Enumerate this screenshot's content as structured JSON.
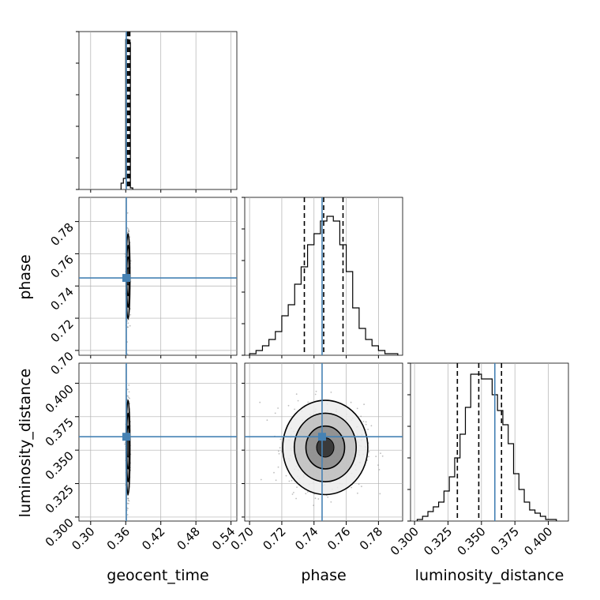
{
  "chart_data": {
    "type": "corner",
    "parameters": [
      "geocent_time",
      "phase",
      "luminosity_distance"
    ],
    "axis_labels": {
      "geocent_time": "geocent_time",
      "phase": "phase",
      "luminosity_distance": "luminosity_distance"
    },
    "ranges": {
      "geocent_time": [
        0.28,
        0.55
      ],
      "phase": [
        0.697,
        0.795
      ],
      "luminosity_distance": [
        0.297,
        0.415
      ]
    },
    "tick_labels": {
      "geocent_time": [
        "0.30",
        "0.36",
        "0.42",
        "0.48",
        "0.54"
      ],
      "phase": [
        "0.70",
        "0.72",
        "0.74",
        "0.76",
        "0.78"
      ],
      "luminosity_distance": [
        "0.300",
        "0.325",
        "0.350",
        "0.375",
        "0.400"
      ]
    },
    "ticks": {
      "geocent_time": [
        0.3,
        0.36,
        0.42,
        0.48,
        0.54
      ],
      "phase": [
        0.7,
        0.72,
        0.74,
        0.76,
        0.78
      ],
      "luminosity_distance": [
        0.3,
        0.325,
        0.35,
        0.375,
        0.4
      ]
    },
    "truths": {
      "geocent_time": 0.361,
      "phase": 0.745,
      "luminosity_distance": 0.36
    },
    "quantiles": {
      "geocent_time": [
        0.363,
        0.365,
        0.367
      ],
      "phase": [
        0.734,
        0.746,
        0.758
      ],
      "luminosity_distance": [
        0.332,
        0.348,
        0.365
      ]
    },
    "histograms": {
      "geocent_time": {
        "bin_edges": [
          0.352,
          0.356,
          0.36,
          0.364,
          0.368,
          0.372
        ],
        "counts": [
          0.04,
          0.07,
          0.95,
          0.93,
          0.01
        ]
      },
      "phase": {
        "bin_edges": [
          0.7,
          0.704,
          0.708,
          0.712,
          0.716,
          0.72,
          0.724,
          0.728,
          0.732,
          0.736,
          0.74,
          0.744,
          0.748,
          0.752,
          0.756,
          0.76,
          0.764,
          0.768,
          0.772,
          0.776,
          0.78,
          0.784,
          0.788,
          0.792
        ],
        "counts": [
          0.01,
          0.03,
          0.06,
          0.1,
          0.15,
          0.25,
          0.32,
          0.45,
          0.56,
          0.7,
          0.77,
          0.85,
          0.88,
          0.85,
          0.7,
          0.53,
          0.3,
          0.17,
          0.1,
          0.06,
          0.03,
          0.01,
          0.01
        ]
      },
      "luminosity_distance": {
        "bin_edges": [
          0.302,
          0.306,
          0.31,
          0.314,
          0.318,
          0.322,
          0.326,
          0.33,
          0.334,
          0.338,
          0.342,
          0.346,
          0.35,
          0.354,
          0.358,
          0.362,
          0.366,
          0.37,
          0.374,
          0.378,
          0.382,
          0.386,
          0.39,
          0.394,
          0.398,
          0.402,
          0.406
        ],
        "counts": [
          0.01,
          0.03,
          0.06,
          0.09,
          0.12,
          0.19,
          0.28,
          0.4,
          0.55,
          0.72,
          0.93,
          0.93,
          0.9,
          0.9,
          0.8,
          0.7,
          0.61,
          0.49,
          0.3,
          0.2,
          0.12,
          0.07,
          0.05,
          0.03,
          0.01,
          0.01
        ]
      }
    },
    "scatter_centers": {
      "geocent_time|phase": [
        0.364,
        0.746
      ],
      "geocent_time|luminosity_distance": [
        0.364,
        0.352
      ],
      "phase|luminosity_distance": [
        0.747,
        0.352
      ]
    },
    "colors": {
      "truth": "#4682b4",
      "histogram": "#000000",
      "scatter": "#888888",
      "grid": "#b0b0b0"
    },
    "grid": true,
    "legend": "none"
  }
}
